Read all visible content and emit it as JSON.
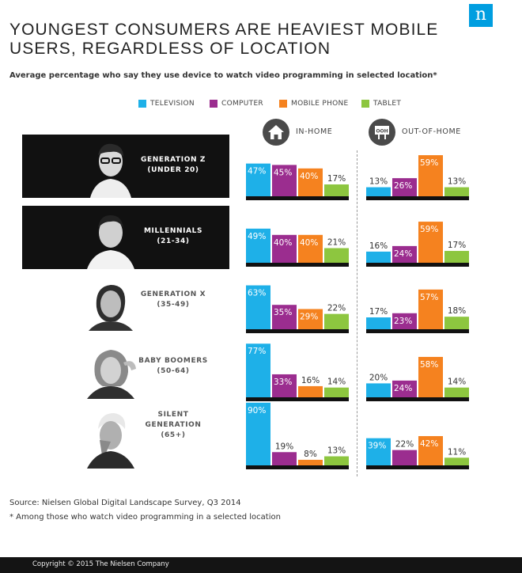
{
  "header": {
    "title_lines": [
      "YOUNGEST CONSUMERS ARE HEAVIEST MOBILE",
      "USERS, REGARDLESS OF LOCATION"
    ],
    "subtitle": "Average percentage who say they use device to watch video programming in selected location*",
    "logo_letter": "n"
  },
  "colors": {
    "television": "#1eb0e8",
    "computer": "#9b2d8f",
    "mobile_phone": "#f5821f",
    "tablet": "#8dc63f",
    "band_dark": "#111111",
    "baseline": "#111111"
  },
  "legend": [
    {
      "label": "TELEVISION",
      "color": "#1eb0e8"
    },
    {
      "label": "COMPUTER",
      "color": "#9b2d8f"
    },
    {
      "label": "MOBILE PHONE",
      "color": "#f5821f"
    },
    {
      "label": "TABLET",
      "color": "#8dc63f"
    }
  ],
  "panels": {
    "in_home": {
      "label": "IN-HOME",
      "icon": "house-icon"
    },
    "out_of_home": {
      "label": "OUT-OF-HOME",
      "icon": "ooh-sign-icon",
      "icon_text": "OOH"
    }
  },
  "groups": [
    {
      "name": "GENERATION Z",
      "range": "(UNDER 20)",
      "style": "dark"
    },
    {
      "name": "MILLENNIALS",
      "range": "(21-34)",
      "style": "dark"
    },
    {
      "name": "GENERATION X",
      "range": "(35-49)",
      "style": "light"
    },
    {
      "name": "BABY BOOMERS",
      "range": "(50-64)",
      "style": "light"
    },
    {
      "name": "SILENT GENERATION",
      "name_lines": [
        "SILENT",
        "GENERATION"
      ],
      "range": "(65+)",
      "style": "light"
    }
  ],
  "chart_data": {
    "type": "bar",
    "title": "YOUNGEST CONSUMERS ARE HEAVIEST MOBILE USERS, REGARDLESS OF LOCATION",
    "subtitle": "Average percentage who say they use device to watch video programming in selected location*",
    "categories": [
      "GENERATION Z (UNDER 20)",
      "MILLENNIALS (21-34)",
      "GENERATION X (35-49)",
      "BABY BOOMERS (50-64)",
      "SILENT GENERATION (65+)"
    ],
    "series_names": [
      "TELEVISION",
      "COMPUTER",
      "MOBILE PHONE",
      "TABLET"
    ],
    "panels": [
      {
        "name": "IN-HOME",
        "values": [
          [
            47,
            45,
            40,
            17
          ],
          [
            49,
            40,
            40,
            21
          ],
          [
            63,
            35,
            29,
            22
          ],
          [
            77,
            33,
            16,
            14
          ],
          [
            90,
            19,
            8,
            13
          ]
        ]
      },
      {
        "name": "OUT-OF-HOME",
        "values": [
          [
            13,
            26,
            59,
            13
          ],
          [
            16,
            24,
            59,
            17
          ],
          [
            17,
            23,
            57,
            18
          ],
          [
            20,
            24,
            58,
            14
          ],
          [
            39,
            22,
            42,
            11
          ]
        ]
      }
    ],
    "value_suffix": "%",
    "ylim": [
      0,
      100
    ],
    "grid": false,
    "legend_position": "top"
  },
  "footnotes": {
    "source": "Source: Nielsen Global Digital Landscape Survey, Q3 2014",
    "note": "* Among those who watch video programming in a selected location"
  },
  "footer": {
    "copyright": "Copyright © 2015 The Nielsen Company"
  }
}
